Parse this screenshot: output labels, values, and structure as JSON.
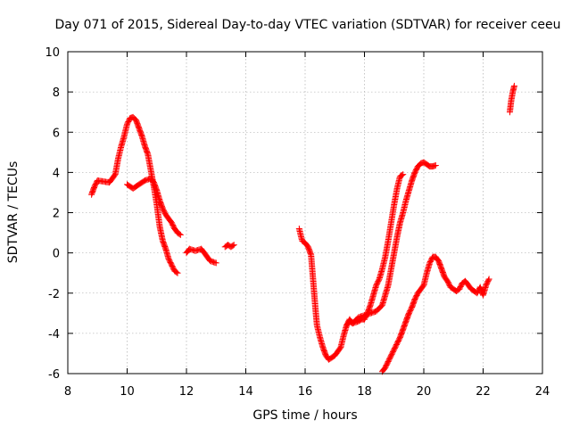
{
  "chart_data": {
    "type": "scatter",
    "title": "Day 071 of 2015, Sidereal Day-to-day VTEC variation (SDTVAR) for receiver ceeu",
    "xlabel": "GPS time / hours",
    "ylabel": "SDTVAR / TECUs",
    "xlim": [
      8,
      24
    ],
    "ylim": [
      -6,
      10
    ],
    "xticks": [
      "8",
      "10",
      "12",
      "14",
      "16",
      "18",
      "20",
      "22",
      "24"
    ],
    "yticks": [
      "-6",
      "-4",
      "-2",
      "0",
      "2",
      "4",
      "6",
      "8",
      "10"
    ],
    "grid": true,
    "marker": "+",
    "series": [
      {
        "name": "SDTVAR",
        "color": "#ff0000",
        "segments": [
          [
            [
              8.8,
              2.9
            ],
            [
              8.9,
              3.3
            ],
            [
              9.0,
              3.6
            ],
            [
              9.2,
              3.55
            ],
            [
              9.4,
              3.5
            ],
            [
              9.6,
              3.9
            ],
            [
              9.7,
              4.7
            ],
            [
              9.8,
              5.3
            ],
            [
              9.9,
              5.8
            ],
            [
              10.0,
              6.4
            ],
            [
              10.1,
              6.7
            ],
            [
              10.2,
              6.75
            ],
            [
              10.3,
              6.6
            ],
            [
              10.4,
              6.2
            ],
            [
              10.5,
              5.8
            ],
            [
              10.6,
              5.3
            ],
            [
              10.7,
              4.9
            ],
            [
              10.8,
              4.1
            ],
            [
              10.9,
              3.3
            ],
            [
              11.0,
              2.4
            ],
            [
              11.1,
              1.3
            ],
            [
              11.2,
              0.6
            ],
            [
              11.3,
              0.2
            ],
            [
              11.4,
              -0.3
            ],
            [
              11.5,
              -0.6
            ],
            [
              11.6,
              -0.9
            ],
            [
              11.7,
              -1.0
            ]
          ],
          [
            [
              10.0,
              3.4
            ],
            [
              10.2,
              3.2
            ],
            [
              10.4,
              3.4
            ],
            [
              10.6,
              3.6
            ],
            [
              10.8,
              3.7
            ],
            [
              10.9,
              3.5
            ],
            [
              11.0,
              3.1
            ],
            [
              11.1,
              2.6
            ],
            [
              11.2,
              2.2
            ],
            [
              11.3,
              1.9
            ],
            [
              11.4,
              1.7
            ],
            [
              11.5,
              1.5
            ],
            [
              11.6,
              1.2
            ],
            [
              11.7,
              1.0
            ],
            [
              11.8,
              0.9
            ]
          ],
          [
            [
              12.0,
              0.0
            ],
            [
              12.1,
              0.2
            ],
            [
              12.3,
              0.1
            ],
            [
              12.5,
              0.2
            ],
            [
              12.6,
              0.0
            ],
            [
              12.8,
              -0.4
            ],
            [
              13.0,
              -0.5
            ]
          ],
          [
            [
              13.3,
              0.3
            ],
            [
              13.4,
              0.4
            ],
            [
              13.5,
              0.3
            ],
            [
              13.6,
              0.4
            ]
          ],
          [
            [
              15.8,
              1.2
            ],
            [
              15.9,
              0.6
            ],
            [
              16.0,
              0.5
            ],
            [
              16.1,
              0.3
            ],
            [
              16.2,
              -0.1
            ],
            [
              16.25,
              -1.0
            ],
            [
              16.3,
              -1.9
            ],
            [
              16.35,
              -2.8
            ],
            [
              16.4,
              -3.6
            ],
            [
              16.5,
              -4.2
            ],
            [
              16.6,
              -4.7
            ],
            [
              16.7,
              -5.1
            ],
            [
              16.8,
              -5.3
            ],
            [
              17.0,
              -5.1
            ],
            [
              17.2,
              -4.7
            ],
            [
              17.3,
              -4.1
            ],
            [
              17.4,
              -3.6
            ],
            [
              17.5,
              -3.3
            ],
            [
              17.6,
              -3.5
            ],
            [
              17.8,
              -3.4
            ],
            [
              17.9,
              -3.3
            ],
            [
              18.0,
              -3.3
            ],
            [
              18.1,
              -3.0
            ],
            [
              18.2,
              -2.6
            ],
            [
              18.3,
              -2.1
            ],
            [
              18.4,
              -1.6
            ],
            [
              18.5,
              -1.3
            ],
            [
              18.6,
              -0.8
            ],
            [
              18.7,
              -0.2
            ],
            [
              18.8,
              0.6
            ],
            [
              18.9,
              1.5
            ],
            [
              19.0,
              2.4
            ],
            [
              19.1,
              3.2
            ],
            [
              19.2,
              3.8
            ],
            [
              19.3,
              3.9
            ]
          ],
          [
            [
              17.4,
              -3.6
            ],
            [
              17.5,
              -3.4
            ],
            [
              17.6,
              -3.5
            ],
            [
              17.8,
              -3.2
            ],
            [
              18.0,
              -3.1
            ],
            [
              18.2,
              -3.0
            ],
            [
              18.4,
              -2.9
            ],
            [
              18.6,
              -2.6
            ],
            [
              18.7,
              -2.1
            ],
            [
              18.8,
              -1.6
            ],
            [
              18.9,
              -0.8
            ],
            [
              19.0,
              0.0
            ],
            [
              19.1,
              0.8
            ],
            [
              19.2,
              1.5
            ],
            [
              19.3,
              2.0
            ],
            [
              19.4,
              2.6
            ],
            [
              19.5,
              3.1
            ],
            [
              19.6,
              3.6
            ],
            [
              19.7,
              4.0
            ],
            [
              19.8,
              4.3
            ],
            [
              19.9,
              4.45
            ],
            [
              20.0,
              4.5
            ],
            [
              20.1,
              4.4
            ],
            [
              20.2,
              4.3
            ],
            [
              20.3,
              4.3
            ],
            [
              20.4,
              4.35
            ]
          ],
          [
            [
              18.6,
              -5.9
            ],
            [
              18.7,
              -5.7
            ],
            [
              18.8,
              -5.4
            ],
            [
              18.9,
              -5.1
            ],
            [
              19.0,
              -4.8
            ],
            [
              19.2,
              -4.2
            ],
            [
              19.3,
              -3.8
            ],
            [
              19.4,
              -3.4
            ],
            [
              19.5,
              -3.0
            ],
            [
              19.6,
              -2.7
            ],
            [
              19.7,
              -2.3
            ],
            [
              19.8,
              -2.0
            ],
            [
              19.9,
              -1.8
            ],
            [
              20.0,
              -1.6
            ],
            [
              20.1,
              -1.0
            ],
            [
              20.2,
              -0.5
            ],
            [
              20.3,
              -0.2
            ],
            [
              20.4,
              -0.2
            ],
            [
              20.5,
              -0.4
            ],
            [
              20.6,
              -0.8
            ],
            [
              20.7,
              -1.2
            ],
            [
              20.8,
              -1.4
            ],
            [
              20.9,
              -1.7
            ],
            [
              21.0,
              -1.8
            ],
            [
              21.1,
              -1.9
            ],
            [
              21.2,
              -1.8
            ],
            [
              21.3,
              -1.5
            ],
            [
              21.4,
              -1.4
            ],
            [
              21.5,
              -1.6
            ],
            [
              21.6,
              -1.8
            ],
            [
              21.7,
              -1.9
            ],
            [
              21.8,
              -2.0
            ],
            [
              21.9,
              -1.7
            ],
            [
              22.0,
              -2.1
            ],
            [
              22.1,
              -1.6
            ],
            [
              22.2,
              -1.3
            ]
          ],
          [
            [
              22.9,
              7.0
            ],
            [
              22.95,
              7.6
            ],
            [
              23.0,
              8.0
            ],
            [
              23.05,
              8.3
            ]
          ]
        ]
      }
    ]
  }
}
